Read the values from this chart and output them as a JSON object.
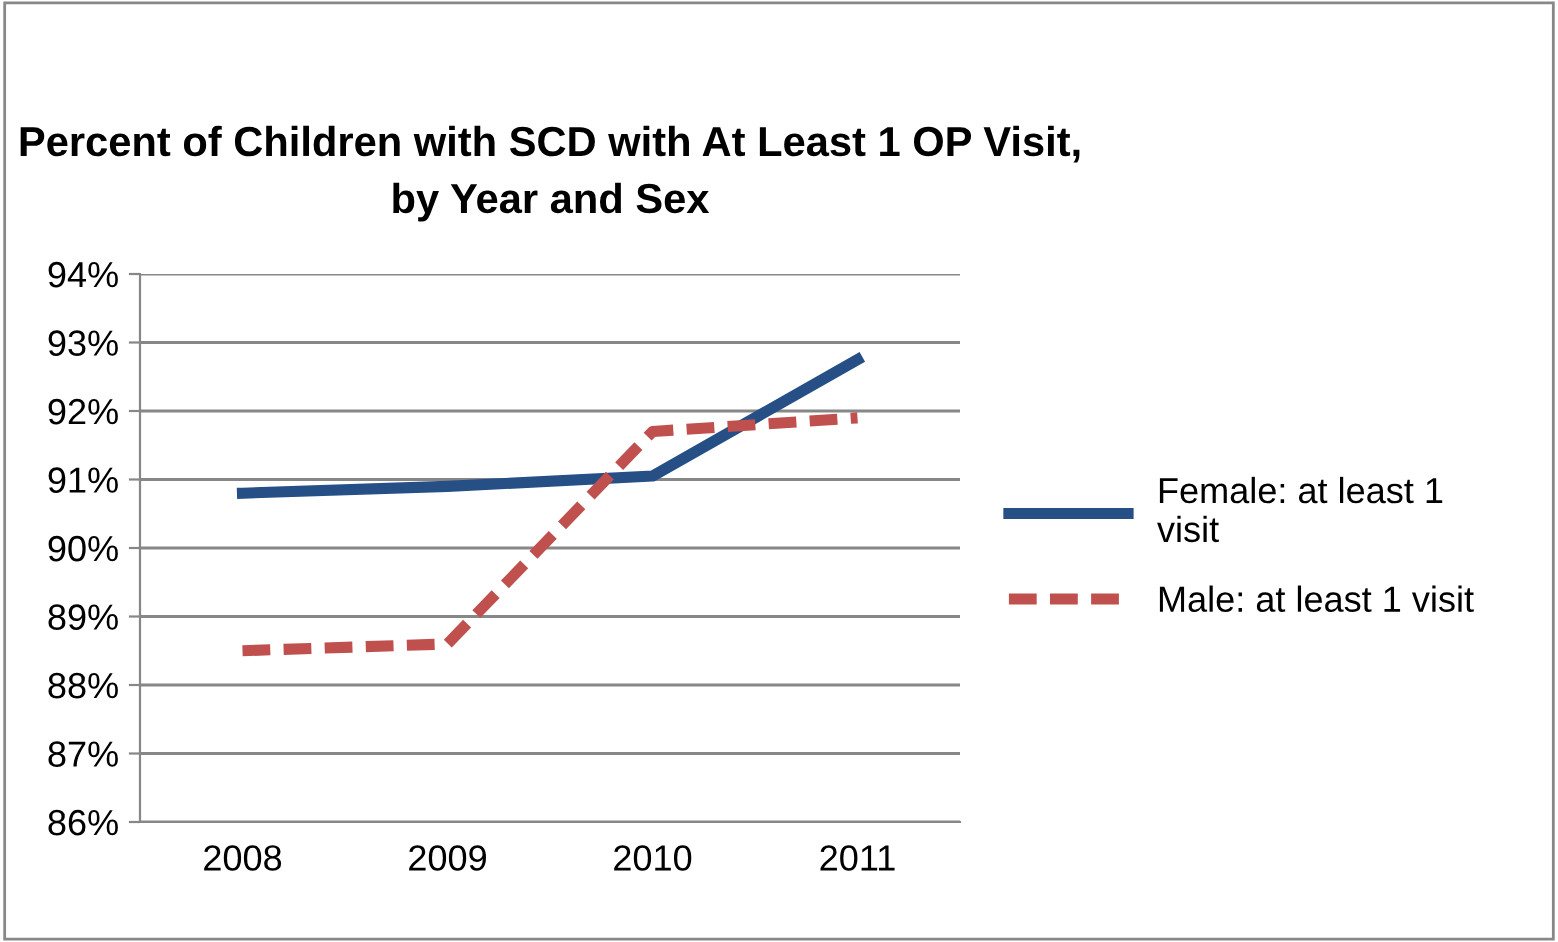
{
  "chart_data": {
    "type": "line",
    "title": "Percent of Children with SCD with At Least 1 OP Visit,\nby Year and Sex",
    "categories": [
      "2008",
      "2009",
      "2010",
      "2011"
    ],
    "series": [
      {
        "name": "Female: at least 1\nvisit",
        "color": "#264f85",
        "values": [
          90.8,
          90.9,
          91.05,
          92.75
        ],
        "line_style": "solid"
      },
      {
        "name": "Male: at least 1 visit",
        "color": "#c0504d",
        "values": [
          88.5,
          88.6,
          91.7,
          91.9
        ],
        "line_style": "dashed"
      }
    ],
    "ylim": [
      86,
      94
    ],
    "yticks": [
      {
        "value": 86,
        "label": "86%"
      },
      {
        "value": 87,
        "label": "87%"
      },
      {
        "value": 88,
        "label": "88%"
      },
      {
        "value": 89,
        "label": "89%"
      },
      {
        "value": 90,
        "label": "90%"
      },
      {
        "value": 91,
        "label": "91%"
      },
      {
        "value": 92,
        "label": "92%"
      },
      {
        "value": 93,
        "label": "93%"
      },
      {
        "value": 94,
        "label": "94%"
      }
    ],
    "grid": "y",
    "legend": "right",
    "marker": "none"
  }
}
